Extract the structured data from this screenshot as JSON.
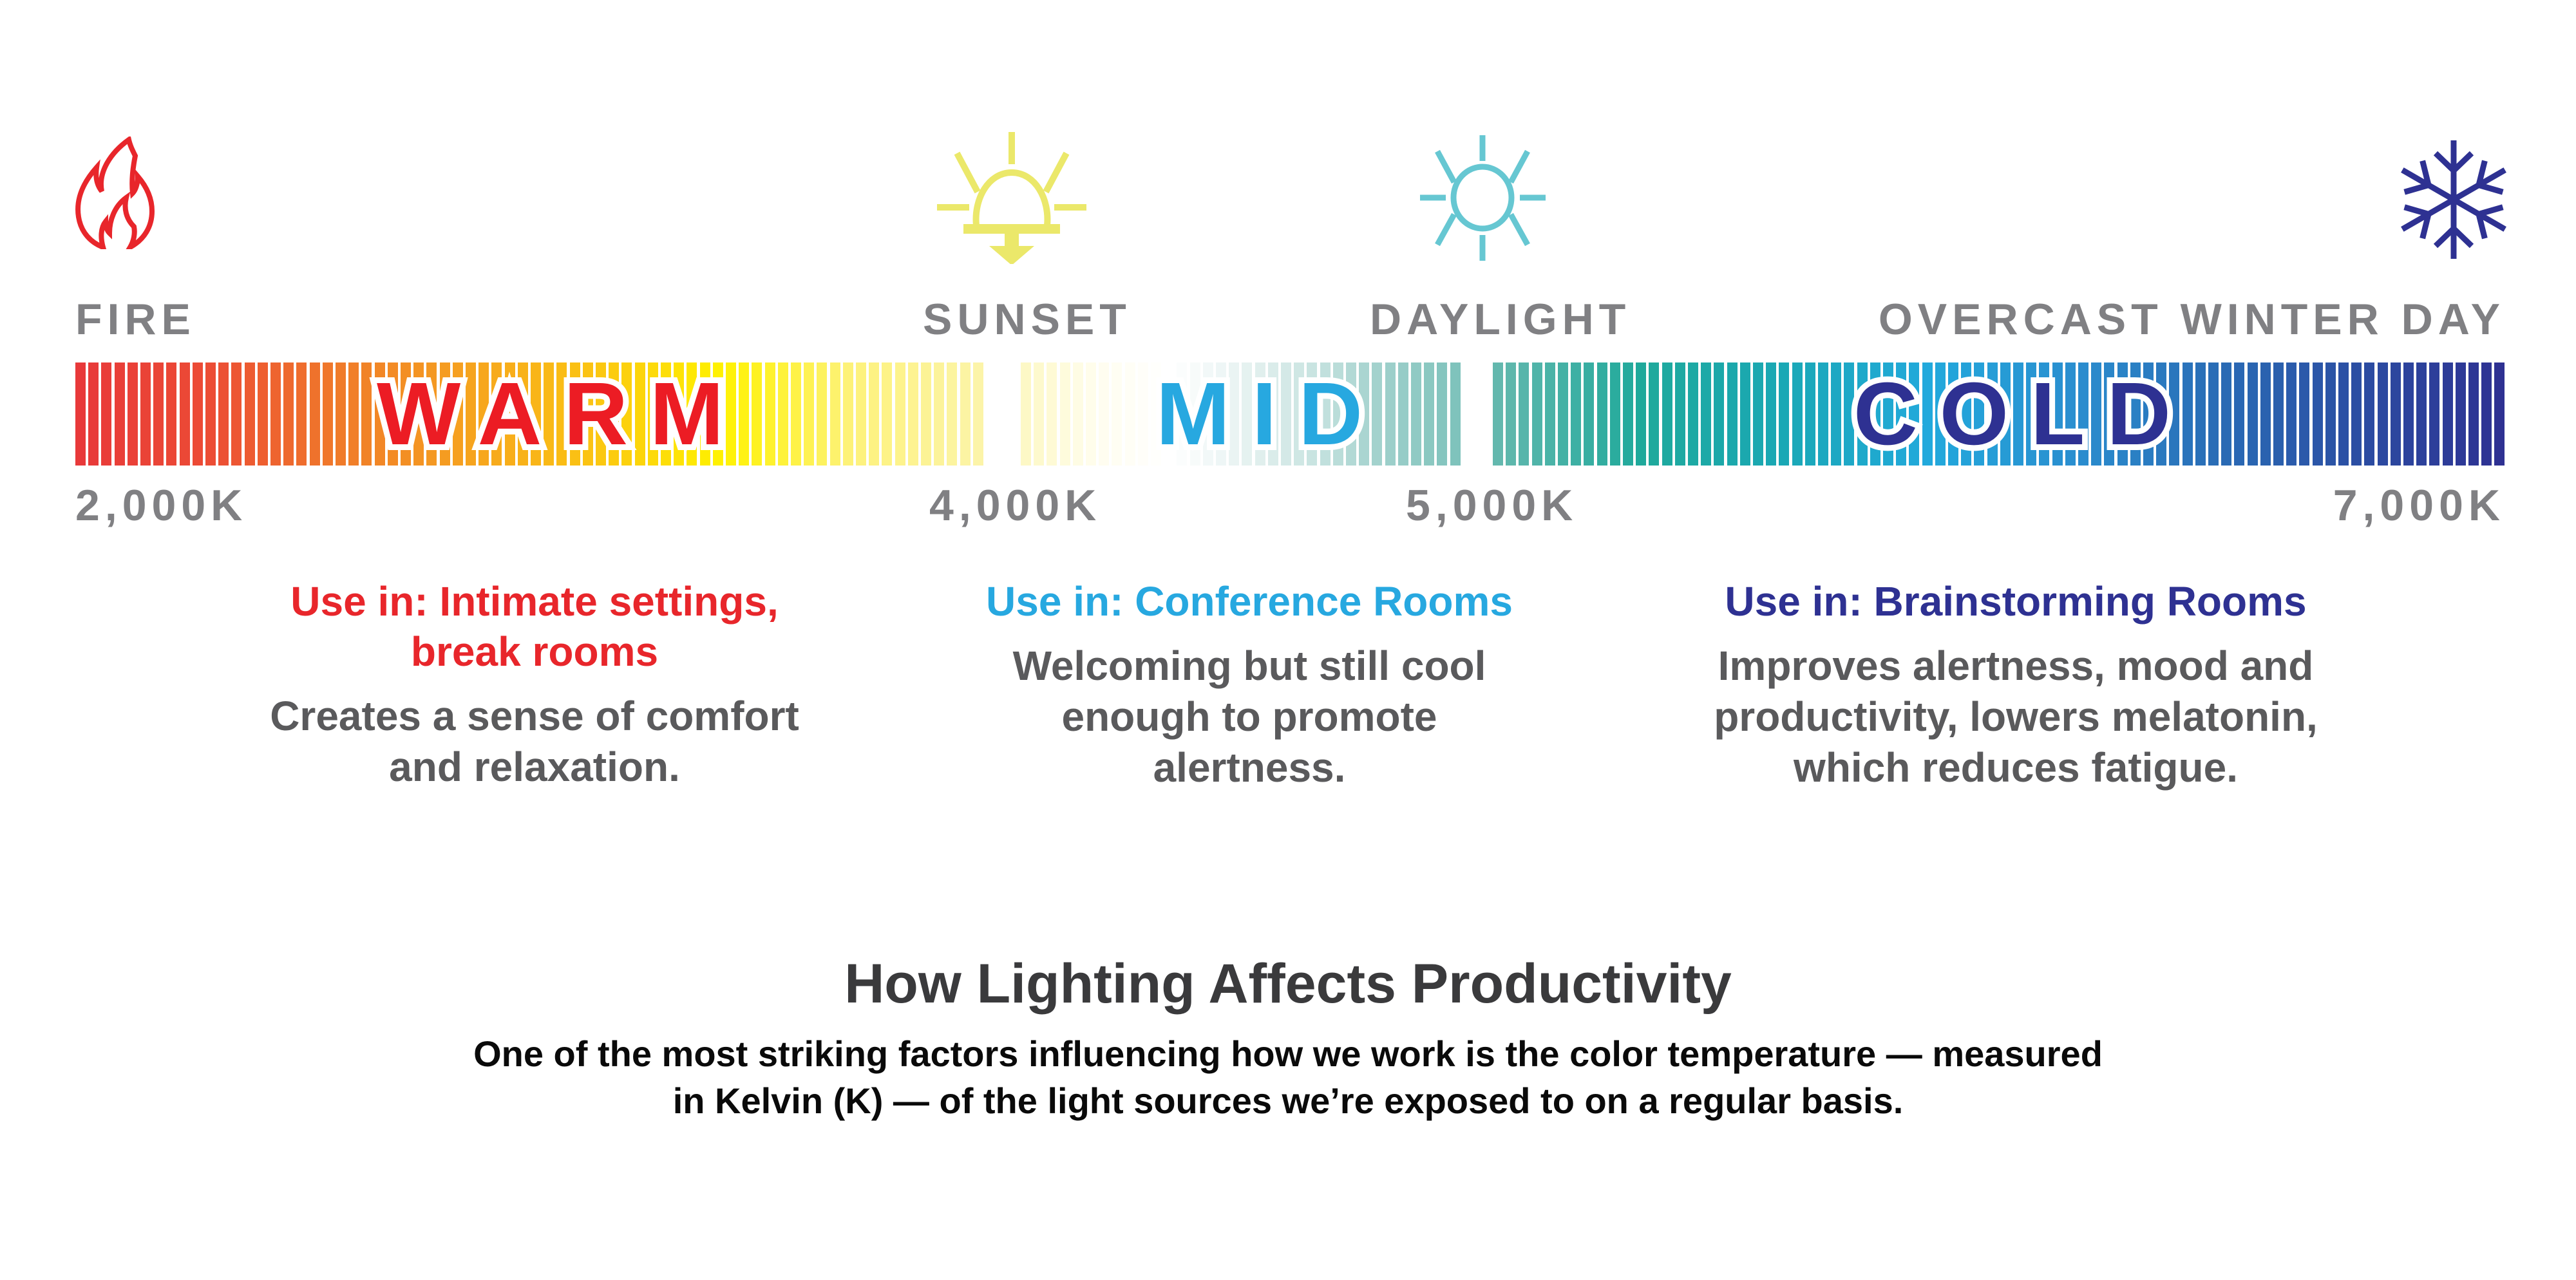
{
  "scale": {
    "points": [
      {
        "name": "FIRE",
        "kelvin": "2,000K",
        "icon": "fire-icon",
        "color": "#e8262b"
      },
      {
        "name": "SUNSET",
        "kelvin": "4,000K",
        "icon": "sunset-icon",
        "color": "#ebe86a"
      },
      {
        "name": "DAYLIGHT",
        "kelvin": "5,000K",
        "icon": "sun-icon",
        "color": "#66c7d2"
      },
      {
        "name": "OVERCAST WINTER DAY",
        "kelvin": "7,000K",
        "icon": "snowflake-icon",
        "color": "#2e3192"
      }
    ],
    "zones": [
      {
        "label": "WARM",
        "color": "#ec1c24"
      },
      {
        "label": "MID",
        "color": "#27a8e0"
      },
      {
        "label": "COLD",
        "color": "#2e3192"
      }
    ],
    "gradient_stops": {
      "warm": [
        "#e8393a",
        "#ec4c35",
        "#f07a2a",
        "#f6a21f",
        "#fbc512",
        "#fff200",
        "#fdf27a",
        "#fcf4a8"
      ],
      "mid": [
        "#fdf8c6",
        "#fffdef",
        "#ffffff",
        "#e8f3f2",
        "#c9e4e1",
        "#9fd0cb",
        "#7fc3bc"
      ],
      "cold": [
        "#63b8ae",
        "#1fa99b",
        "#1aa8b5",
        "#22a9dc",
        "#2a8fd0",
        "#2a6db6",
        "#2b4ea3",
        "#2e3192"
      ]
    }
  },
  "uses": [
    {
      "title_lines": [
        "Use in: Intimate settings,",
        "break rooms"
      ],
      "desc_lines": [
        "Creates a sense of comfort",
        "and relaxation."
      ],
      "color": "#e8262b"
    },
    {
      "title_lines": [
        "Use in: Conference Rooms"
      ],
      "desc_lines": [
        "Welcoming but still cool",
        "enough to promote",
        "alertness."
      ],
      "color": "#27a8e0"
    },
    {
      "title_lines": [
        "Use in: Brainstorming Rooms"
      ],
      "desc_lines": [
        "Improves alertness, mood and",
        "productivity, lowers melatonin,",
        "which reduces fatigue."
      ],
      "color": "#2e3192"
    }
  ],
  "heading": "How Lighting Affects Productivity",
  "intro_lines": [
    "One of the most striking factors influencing how we work is the color temperature — measured",
    "in Kelvin (K) — of the light sources we’re exposed to on a regular basis."
  ]
}
